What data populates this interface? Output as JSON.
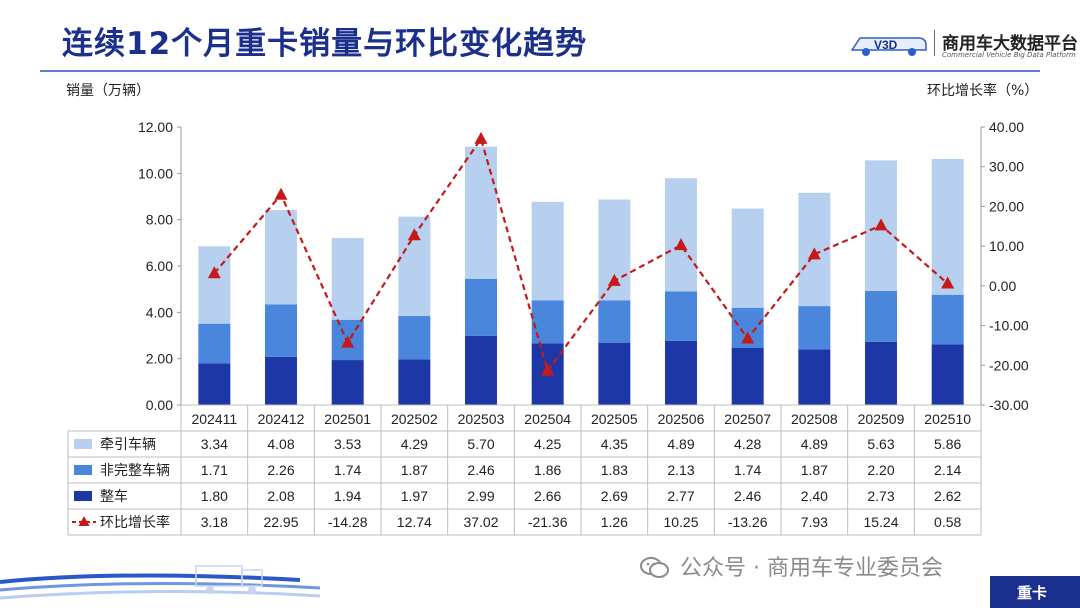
{
  "header": {
    "title": "连续12个月重卡销量与环比变化趋势",
    "brand_name": "商用车大数据平台",
    "brand_sub": "Commercial Vehicle Big Data Platform",
    "brand_logo_text": "V3D"
  },
  "footer": {
    "wechat_text": "公众号 · 商用车专业委员会",
    "tag": "重卡"
  },
  "colors": {
    "tractor": "#b7d0f0",
    "incomplete": "#4a86dc",
    "complete": "#1e37a6",
    "ratio": "#c41a1a",
    "title": "#1b2f8c"
  },
  "chart_data": {
    "type": "bar",
    "stacked": true,
    "categories": [
      "202411",
      "202412",
      "202501",
      "202502",
      "202503",
      "202504",
      "202505",
      "202506",
      "202507",
      "202508",
      "202509",
      "202510"
    ],
    "y_left_label": "销量（万辆）",
    "y_right_label": "环比增长率（%）",
    "y_left_range": [
      0,
      12
    ],
    "y_left_ticks": [
      "0.00",
      "2.00",
      "4.00",
      "6.00",
      "8.00",
      "10.00",
      "12.00"
    ],
    "y_right_range": [
      -30,
      40
    ],
    "y_right_ticks": [
      "-30.00",
      "-20.00",
      "-10.00",
      "0.00",
      "10.00",
      "20.00",
      "30.00",
      "40.00"
    ],
    "series": [
      {
        "name": "牵引车辆",
        "type": "bar",
        "axis": "left",
        "values": [
          3.34,
          4.08,
          3.53,
          4.29,
          5.7,
          4.25,
          4.35,
          4.89,
          4.28,
          4.89,
          5.63,
          5.86
        ],
        "labels": [
          "3.34",
          "4.08",
          "3.53",
          "4.29",
          "5.70",
          "4.25",
          "4.35",
          "4.89",
          "4.28",
          "4.89",
          "5.63",
          "5.86"
        ]
      },
      {
        "name": "非完整车辆",
        "type": "bar",
        "axis": "left",
        "values": [
          1.71,
          2.26,
          1.74,
          1.87,
          2.46,
          1.86,
          1.83,
          2.13,
          1.74,
          1.87,
          2.2,
          2.14
        ],
        "labels": [
          "1.71",
          "2.26",
          "1.74",
          "1.87",
          "2.46",
          "1.86",
          "1.83",
          "2.13",
          "1.74",
          "1.87",
          "2.20",
          "2.14"
        ]
      },
      {
        "name": "整车",
        "type": "bar",
        "axis": "left",
        "values": [
          1.8,
          2.08,
          1.94,
          1.97,
          2.99,
          2.66,
          2.69,
          2.77,
          2.46,
          2.4,
          2.73,
          2.62
        ],
        "labels": [
          "1.80",
          "2.08",
          "1.94",
          "1.97",
          "2.99",
          "2.66",
          "2.69",
          "2.77",
          "2.46",
          "2.40",
          "2.73",
          "2.62"
        ]
      },
      {
        "name": "环比增长率",
        "type": "line",
        "axis": "right",
        "values": [
          3.18,
          22.95,
          -14.28,
          12.74,
          37.02,
          -21.36,
          1.26,
          10.25,
          -13.26,
          7.93,
          15.24,
          0.58
        ],
        "labels": [
          "3.18",
          "22.95",
          "-14.28",
          "12.74",
          "37.02",
          "-21.36",
          "1.26",
          "10.25",
          "-13.26",
          "7.93",
          "15.24",
          "0.58"
        ]
      }
    ],
    "legend": "table-below"
  }
}
